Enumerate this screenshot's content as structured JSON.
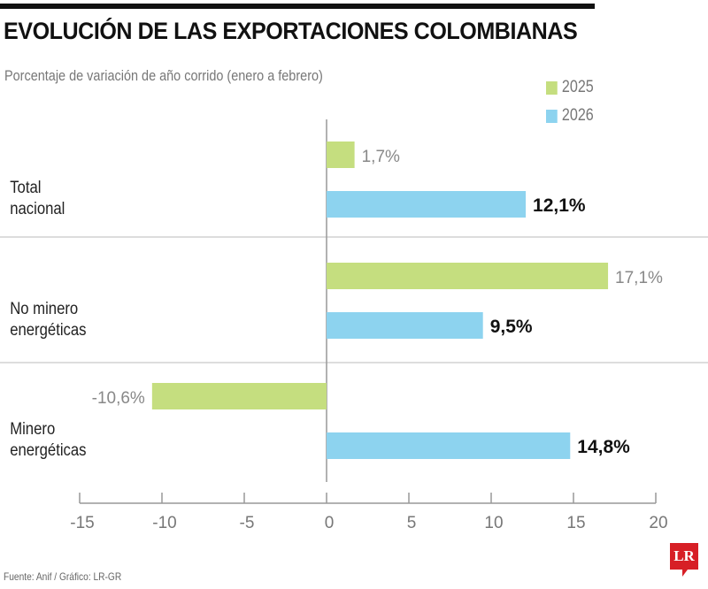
{
  "chart_data": {
    "type": "bar",
    "orientation": "horizontal",
    "title": "EVOLUCIÓN DE LAS EXPORTACIONES COLOMBIANAS",
    "subtitle": "Porcentaje de variación de año corrido (enero a febrero)",
    "categories": [
      [
        "Total",
        "nacional"
      ],
      [
        "No minero",
        "energéticas"
      ],
      [
        "Minero",
        "energéticas"
      ]
    ],
    "series": [
      {
        "name": "2025",
        "color": "#c5de7f",
        "values": [
          1.7,
          17.1,
          -10.6
        ],
        "labels": [
          "1,7%",
          "17,1%",
          "-10,6%"
        ]
      },
      {
        "name": "2026",
        "color": "#8dd3ef",
        "values": [
          12.1,
          9.5,
          14.8
        ],
        "labels": [
          "12,1%",
          "9,5%",
          "14,8%"
        ]
      }
    ],
    "xlim": [
      -15,
      20
    ],
    "xticks": [
      -15,
      -10,
      -5,
      0,
      5,
      10,
      15,
      20
    ],
    "xtick_labels": [
      "-15",
      "-10",
      "-5",
      "0",
      "5",
      "10",
      "15",
      "20"
    ],
    "grid": false,
    "legend": "top-right"
  },
  "source": "Fuente: Anif / Gráfico: LR-GR",
  "logo": "LR"
}
